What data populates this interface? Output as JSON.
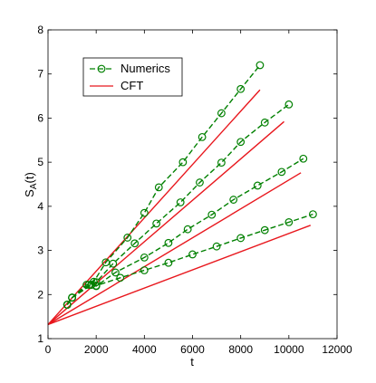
{
  "chart_data": {
    "type": "line",
    "xlabel": "t",
    "ylabel_main": "S",
    "ylabel_sub": "A",
    "ylabel_tail": "(t)",
    "xlim": [
      0,
      12000
    ],
    "ylim": [
      1,
      8
    ],
    "xticks": [
      0,
      2000,
      4000,
      6000,
      8000,
      10000,
      12000
    ],
    "yticks": [
      1,
      2,
      3,
      4,
      5,
      6,
      7,
      8
    ],
    "grid": false,
    "legend_position": "top-left",
    "colors": {
      "numerics": "#008000",
      "cft": "#e8171d"
    },
    "legend": [
      "Numerics",
      "CFT"
    ],
    "numerics": [
      {
        "name": "Numerics",
        "x": [
          800,
          1000,
          1600,
          1900,
          2400,
          3300,
          4000,
          4600,
          5600,
          6400,
          7200,
          8000,
          8800
        ],
        "y": [
          1.77,
          1.93,
          2.22,
          2.29,
          2.73,
          3.29,
          3.85,
          4.43,
          5.0,
          5.57,
          6.11,
          6.66,
          7.2
        ]
      },
      {
        "name": "Numerics",
        "x": [
          800,
          1000,
          1700,
          2000,
          2700,
          3600,
          4500,
          5500,
          6300,
          7200,
          8000,
          9000,
          10000
        ],
        "y": [
          1.77,
          1.93,
          2.22,
          2.28,
          2.7,
          3.16,
          3.61,
          4.09,
          4.54,
          4.99,
          5.46,
          5.9,
          6.31
        ]
      },
      {
        "name": "Numerics",
        "x": [
          800,
          1000,
          1800,
          2000,
          2800,
          4000,
          5000,
          5800,
          6800,
          7700,
          8700,
          9700,
          10600
        ],
        "y": [
          1.77,
          1.93,
          2.22,
          2.19,
          2.5,
          2.84,
          3.17,
          3.48,
          3.81,
          4.15,
          4.47,
          4.78,
          5.08
        ]
      },
      {
        "name": "Numerics",
        "x": [
          800,
          1000,
          1800,
          2000,
          3000,
          4000,
          5000,
          6000,
          7000,
          8000,
          9000,
          10000,
          11000
        ],
        "y": [
          1.77,
          1.93,
          2.22,
          2.2,
          2.38,
          2.55,
          2.72,
          2.91,
          3.09,
          3.28,
          3.46,
          3.64,
          3.82
        ]
      }
    ],
    "cft": [
      {
        "name": "CFT",
        "x": [
          0,
          8800
        ],
        "y": [
          1.32,
          6.64
        ]
      },
      {
        "name": "CFT",
        "x": [
          0,
          9800
        ],
        "y": [
          1.32,
          5.92
        ]
      },
      {
        "name": "CFT",
        "x": [
          0,
          10500
        ],
        "y": [
          1.32,
          4.76
        ]
      },
      {
        "name": "CFT",
        "x": [
          0,
          10900
        ],
        "y": [
          1.32,
          3.57
        ]
      }
    ]
  }
}
